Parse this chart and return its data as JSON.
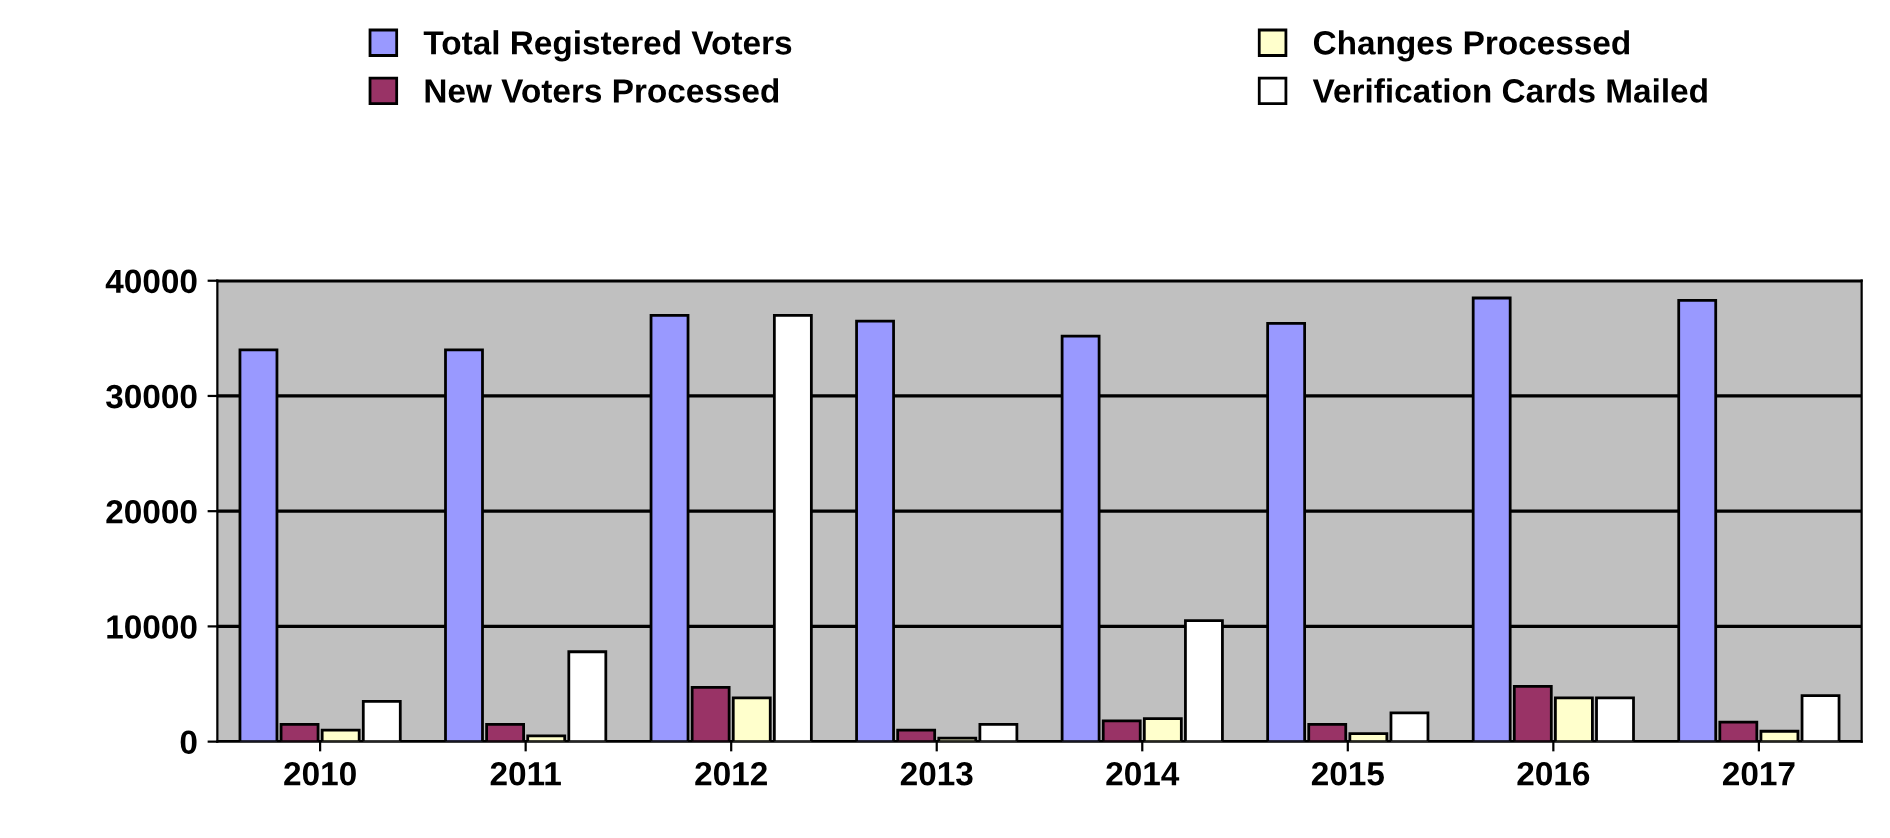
{
  "chart_data": {
    "type": "bar",
    "categories": [
      "2010",
      "2011",
      "2012",
      "2013",
      "2014",
      "2015",
      "2016",
      "2017"
    ],
    "series": [
      {
        "name": "Total Registered Voters",
        "color": "#9999ff",
        "values": [
          34000,
          34000,
          37000,
          36500,
          35200,
          36300,
          38500,
          38300
        ]
      },
      {
        "name": "New Voters Processed",
        "color": "#993366",
        "values": [
          1500,
          1500,
          4700,
          1000,
          1800,
          1500,
          4800,
          1700
        ]
      },
      {
        "name": "Changes Processed",
        "color": "#ffffcc",
        "values": [
          1000,
          500,
          3800,
          300,
          2000,
          700,
          3800,
          900
        ]
      },
      {
        "name": "Verification Cards Mailed",
        "color": "#ffffff",
        "values": [
          3500,
          7800,
          37000,
          1500,
          10500,
          2500,
          3800,
          4000
        ]
      }
    ],
    "ylim": [
      0,
      40000
    ],
    "yticks": [
      0,
      10000,
      20000,
      30000,
      40000
    ],
    "grid": "y",
    "legend": "top"
  }
}
